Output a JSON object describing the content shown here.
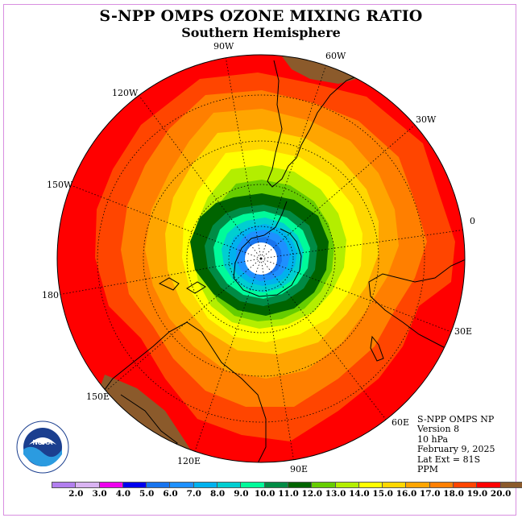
{
  "title": "S-NPP OMPS OZONE MIXING RATIO",
  "subtitle": "Southern Hemisphere",
  "map": {
    "projection": "south-polar stereographic",
    "longitude_labels": [
      "90W",
      "60W",
      "30W",
      "0",
      "30E",
      "60E",
      "90E",
      "120E",
      "150E",
      "180",
      "150W",
      "120W"
    ]
  },
  "info": {
    "product": "S-NPP OMPS NP",
    "version": "Version 8",
    "level": "10 hPa",
    "date": "February 9, 2025",
    "lat_ext": "Lat Ext = 81S",
    "units": "PPM"
  },
  "colorbar": {
    "colors": [
      "#b27fee",
      "#d9b3f2",
      "#ee00ee",
      "#0000ee",
      "#1874ee",
      "#1e90ff",
      "#00b2ee",
      "#00ced1",
      "#00fa9a",
      "#008b45",
      "#006400",
      "#66cd00",
      "#b3ee00",
      "#ffff00",
      "#ffd700",
      "#ffa500",
      "#ff7f00",
      "#ff4500",
      "#ff0000",
      "#8b5a2b"
    ],
    "labels": [
      "2.0",
      "3.0",
      "4.0",
      "5.0",
      "6.0",
      "7.0",
      "8.0",
      "9.0",
      "10.0",
      "11.0",
      "12.0",
      "13.0",
      "14.0",
      "15.0",
      "16.0",
      "17.0",
      "18.0",
      "19.0",
      "20.0"
    ]
  },
  "logo": {
    "text": "NOAA"
  }
}
